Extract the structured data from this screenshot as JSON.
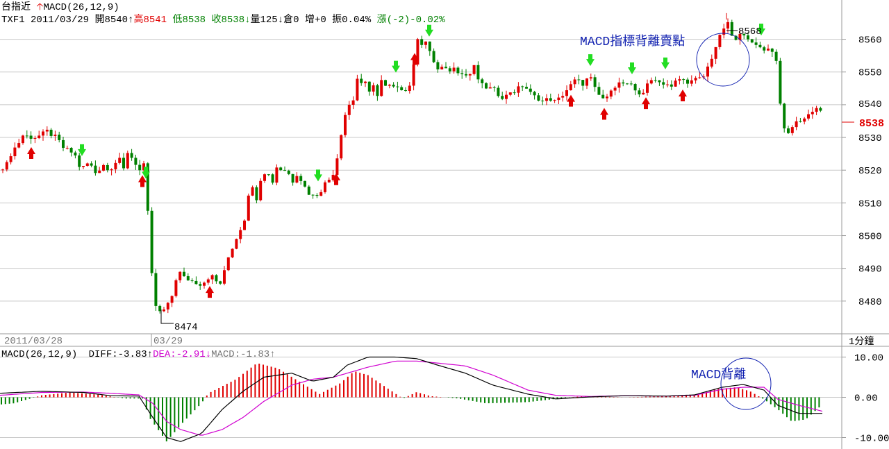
{
  "header": {
    "instrument": "台指近",
    "indicator": "MACD(26,12,9)",
    "line2": {
      "code": "TXF1",
      "date": "2011/03/29",
      "open_label": "開",
      "open": "8540",
      "high_label": "高",
      "high": "8541",
      "low_label": "低",
      "low": "8538",
      "close_label": "收",
      "close": "8538",
      "volume_label": "量",
      "volume": "125",
      "oi_label": "倉",
      "oi": "0",
      "change_label": "增",
      "change": "+0",
      "amplitude_label": "振",
      "amplitude": "0.04%",
      "rise_label": "漲",
      "rise": "(-2)-0.02%"
    }
  },
  "price_panel": {
    "y_ticks": [
      "8560",
      "8550",
      "8540",
      "8530",
      "8520",
      "8510",
      "8500",
      "8490",
      "8480"
    ],
    "last_price": "8538",
    "annotation_high": "8568",
    "annotation_low": "8474",
    "divergence_text": "MACD指標背離賣點",
    "date_left": "2011/03/28",
    "date_mid": "03/29",
    "interval": "1分鐘"
  },
  "macd_panel": {
    "title": "MACD(26,12,9)",
    "diff_label": "DIFF:",
    "diff": "-3.83",
    "dea_label": "DEA:",
    "dea": "-2.91",
    "macd_label": "MACD:",
    "macd": "-1.83",
    "y_ticks": [
      "10.00",
      "0.00",
      "-10.00"
    ],
    "divergence_text": "MACD背離"
  },
  "colors": {
    "up": "#e00000",
    "down": "#008000",
    "diff_line": "#000000",
    "dea_line": "#d000d0",
    "annotation": "#1020b0",
    "buy_arrow": "#e00000",
    "sell_arrow": "#22dd22",
    "grid": "#c8c8c8"
  },
  "chart_data": [
    {
      "type": "candlestick",
      "title": "",
      "ylim": [
        8470,
        8572
      ],
      "y_ticks": [
        8480,
        8490,
        8500,
        8510,
        8520,
        8530,
        8540,
        8550,
        8560
      ],
      "anchors": [
        [
          0,
          8520
        ],
        [
          10,
          8522
        ],
        [
          18,
          8526
        ],
        [
          26,
          8528
        ],
        [
          34,
          8531
        ],
        [
          42,
          8530
        ],
        [
          52,
          8530
        ],
        [
          60,
          8531
        ],
        [
          68,
          8532
        ],
        [
          72,
          8531
        ],
        [
          82,
          8530
        ],
        [
          90,
          8527
        ],
        [
          100,
          8526
        ],
        [
          110,
          8524
        ],
        [
          116,
          8520
        ],
        [
          124,
          8522
        ],
        [
          130,
          8522
        ],
        [
          136,
          8519
        ],
        [
          142,
          8520
        ],
        [
          150,
          8522
        ],
        [
          154,
          8520
        ],
        [
          158,
          8520
        ],
        [
          164,
          8522
        ],
        [
          172,
          8524
        ],
        [
          178,
          8520
        ],
        [
          185,
          8526
        ],
        [
          192,
          8523
        ],
        [
          200,
          8520
        ],
        [
          207,
          8522
        ],
        [
          212,
          8508
        ],
        [
          216,
          8503
        ],
        [
          220,
          8480
        ],
        [
          226,
          8478
        ],
        [
          232,
          8476
        ],
        [
          238,
          8478
        ],
        [
          246,
          8480
        ],
        [
          252,
          8486
        ],
        [
          258,
          8489
        ],
        [
          266,
          8487
        ],
        [
          278,
          8486
        ],
        [
          290,
          8485
        ],
        [
          304,
          8488
        ],
        [
          315,
          8485
        ],
        [
          320,
          8486
        ],
        [
          326,
          8492
        ],
        [
          336,
          8497
        ],
        [
          342,
          8500
        ],
        [
          352,
          8505
        ],
        [
          358,
          8513
        ],
        [
          362,
          8516
        ],
        [
          368,
          8510
        ],
        [
          376,
          8518
        ],
        [
          384,
          8520
        ],
        [
          392,
          8516
        ],
        [
          398,
          8521
        ],
        [
          406,
          8520
        ],
        [
          414,
          8520
        ],
        [
          420,
          8516
        ],
        [
          428,
          8519
        ],
        [
          436,
          8516
        ],
        [
          444,
          8513
        ],
        [
          452,
          8512
        ],
        [
          460,
          8513
        ],
        [
          468,
          8516
        ],
        [
          478,
          8518
        ],
        [
          484,
          8522
        ],
        [
          490,
          8530
        ],
        [
          496,
          8536
        ],
        [
          500,
          8540
        ],
        [
          508,
          8540
        ],
        [
          512,
          8550
        ],
        [
          518,
          8545
        ],
        [
          524,
          8548
        ],
        [
          530,
          8544
        ],
        [
          538,
          8546
        ],
        [
          544,
          8542
        ],
        [
          550,
          8548
        ],
        [
          556,
          8545
        ],
        [
          564,
          8546
        ],
        [
          572,
          8546
        ],
        [
          580,
          8544
        ],
        [
          588,
          8545
        ],
        [
          594,
          8546
        ],
        [
          598,
          8563
        ],
        [
          602,
          8560
        ],
        [
          608,
          8558
        ],
        [
          614,
          8559
        ],
        [
          620,
          8556
        ],
        [
          626,
          8552
        ],
        [
          632,
          8550
        ],
        [
          640,
          8552
        ],
        [
          648,
          8550
        ],
        [
          654,
          8552
        ],
        [
          660,
          8550
        ],
        [
          668,
          8549
        ],
        [
          676,
          8549
        ],
        [
          682,
          8552
        ],
        [
          688,
          8548
        ],
        [
          694,
          8546
        ],
        [
          702,
          8545
        ],
        [
          710,
          8545
        ],
        [
          718,
          8543
        ],
        [
          726,
          8542
        ],
        [
          734,
          8544
        ],
        [
          742,
          8544
        ],
        [
          750,
          8546
        ],
        [
          758,
          8545
        ],
        [
          766,
          8543
        ],
        [
          774,
          8542
        ],
        [
          782,
          8541
        ],
        [
          790,
          8542
        ],
        [
          798,
          8541
        ],
        [
          806,
          8542
        ],
        [
          814,
          8544
        ],
        [
          822,
          8546
        ],
        [
          830,
          8548
        ],
        [
          838,
          8546
        ],
        [
          846,
          8548
        ],
        [
          852,
          8548
        ],
        [
          858,
          8544
        ],
        [
          866,
          8542
        ],
        [
          874,
          8542
        ],
        [
          880,
          8545
        ],
        [
          888,
          8546
        ],
        [
          894,
          8547
        ],
        [
          900,
          8546
        ],
        [
          908,
          8546
        ],
        [
          916,
          8544
        ],
        [
          924,
          8543
        ],
        [
          932,
          8546
        ],
        [
          940,
          8548
        ],
        [
          946,
          8548
        ],
        [
          952,
          8546
        ],
        [
          958,
          8547
        ],
        [
          966,
          8545
        ],
        [
          972,
          8547
        ],
        [
          980,
          8548
        ],
        [
          988,
          8547
        ],
        [
          994,
          8547
        ],
        [
          1004,
          8548
        ],
        [
          1012,
          8548
        ],
        [
          1020,
          8552
        ],
        [
          1028,
          8556
        ],
        [
          1034,
          8560
        ],
        [
          1040,
          8562
        ],
        [
          1046,
          8566
        ],
        [
          1052,
          8562
        ],
        [
          1058,
          8559
        ],
        [
          1064,
          8561
        ],
        [
          1070,
          8562
        ],
        [
          1076,
          8561
        ],
        [
          1080,
          8559
        ],
        [
          1086,
          8558
        ],
        [
          1092,
          8558
        ],
        [
          1098,
          8557
        ],
        [
          1104,
          8557
        ],
        [
          1110,
          8557
        ],
        [
          1114,
          8556
        ],
        [
          1118,
          8553
        ],
        [
          1122,
          8545
        ],
        [
          1126,
          8533
        ],
        [
          1130,
          8532
        ],
        [
          1136,
          8531
        ],
        [
          1142,
          8534
        ],
        [
          1150,
          8535
        ],
        [
          1160,
          8536
        ],
        [
          1168,
          8538
        ],
        [
          1176,
          8539
        ],
        [
          1184,
          8538
        ]
      ],
      "labels": [
        {
          "text_key": "annotation_high",
          "x": 1046,
          "value": 8568
        },
        {
          "text_key": "annotation_low",
          "x": 232,
          "value": 8474
        }
      ]
    },
    {
      "type": "bar+line",
      "title": "MACD(26,12,9)",
      "ylim": [
        -12.5,
        12.5
      ],
      "y_ticks": [
        10,
        0,
        -10
      ],
      "series": [
        {
          "name": "DIFF",
          "points": [
            [
              0,
              1
            ],
            [
              60,
              1.5
            ],
            [
              120,
              1.2
            ],
            [
              160,
              0.4
            ],
            [
              200,
              0.3
            ],
            [
              220,
              -5
            ],
            [
              240,
              -10
            ],
            [
              260,
              -11
            ],
            [
              290,
              -9
            ],
            [
              320,
              -3
            ],
            [
              350,
              1.5
            ],
            [
              380,
              5
            ],
            [
              420,
              6
            ],
            [
              450,
              4
            ],
            [
              480,
              5
            ],
            [
              500,
              8
            ],
            [
              530,
              10
            ],
            [
              570,
              10
            ],
            [
              600,
              9.6
            ],
            [
              630,
              8
            ],
            [
              670,
              6
            ],
            [
              710,
              3
            ],
            [
              760,
              0.8
            ],
            [
              800,
              -0.4
            ],
            [
              850,
              0.1
            ],
            [
              900,
              0.4
            ],
            [
              960,
              0.3
            ],
            [
              1000,
              0.6
            ],
            [
              1040,
              2.5
            ],
            [
              1070,
              3.2
            ],
            [
              1100,
              1.8
            ],
            [
              1120,
              -2
            ],
            [
              1150,
              -4
            ],
            [
              1185,
              -4
            ]
          ]
        },
        {
          "name": "DEA",
          "points": [
            [
              0,
              0.5
            ],
            [
              60,
              1.2
            ],
            [
              120,
              1.3
            ],
            [
              160,
              1
            ],
            [
              200,
              0.6
            ],
            [
              220,
              -1.5
            ],
            [
              240,
              -6
            ],
            [
              260,
              -8
            ],
            [
              290,
              -9.5
            ],
            [
              320,
              -8
            ],
            [
              350,
              -5
            ],
            [
              380,
              -1
            ],
            [
              420,
              3
            ],
            [
              450,
              4.5
            ],
            [
              480,
              5
            ],
            [
              500,
              6
            ],
            [
              530,
              7.5
            ],
            [
              570,
              9
            ],
            [
              600,
              9
            ],
            [
              630,
              8.5
            ],
            [
              670,
              7.8
            ],
            [
              710,
              5.5
            ],
            [
              760,
              1.8
            ],
            [
              800,
              0.5
            ],
            [
              850,
              0.2
            ],
            [
              900,
              0.4
            ],
            [
              960,
              0.3
            ],
            [
              1000,
              0.5
            ],
            [
              1040,
              2
            ],
            [
              1070,
              2.5
            ],
            [
              1100,
              2.5
            ],
            [
              1120,
              -0.5
            ],
            [
              1150,
              -2
            ],
            [
              1185,
              -3.5
            ]
          ]
        },
        {
          "name": "MACD",
          "points": [
            [
              0,
              -1.8
            ],
            [
              20,
              -1.5
            ],
            [
              60,
              0.5
            ],
            [
              100,
              1.2
            ],
            [
              140,
              0.7
            ],
            [
              180,
              -0.3
            ],
            [
              205,
              -0.3
            ],
            [
              215,
              -5
            ],
            [
              240,
              -11
            ],
            [
              262,
              -6.5
            ],
            [
              290,
              -1.5
            ],
            [
              300,
              1
            ],
            [
              340,
              4.5
            ],
            [
              370,
              8.5
            ],
            [
              400,
              7.2
            ],
            [
              430,
              4
            ],
            [
              460,
              0.8
            ],
            [
              490,
              3.5
            ],
            [
              510,
              6.5
            ],
            [
              530,
              5.5
            ],
            [
              560,
              2
            ],
            [
              580,
              -0.3
            ],
            [
              600,
              1.3
            ],
            [
              620,
              0.3
            ],
            [
              660,
              -0.3
            ],
            [
              700,
              -1.5
            ],
            [
              760,
              -1.2
            ],
            [
              800,
              -0.4
            ],
            [
              840,
              0.3
            ],
            [
              900,
              0
            ],
            [
              960,
              0.3
            ],
            [
              1000,
              0.5
            ],
            [
              1030,
              2
            ],
            [
              1060,
              2.5
            ],
            [
              1080,
              1.5
            ],
            [
              1100,
              -0.5
            ],
            [
              1120,
              -3
            ],
            [
              1140,
              -6
            ],
            [
              1160,
              -5.5
            ],
            [
              1184,
              -1.8
            ]
          ]
        }
      ]
    }
  ]
}
